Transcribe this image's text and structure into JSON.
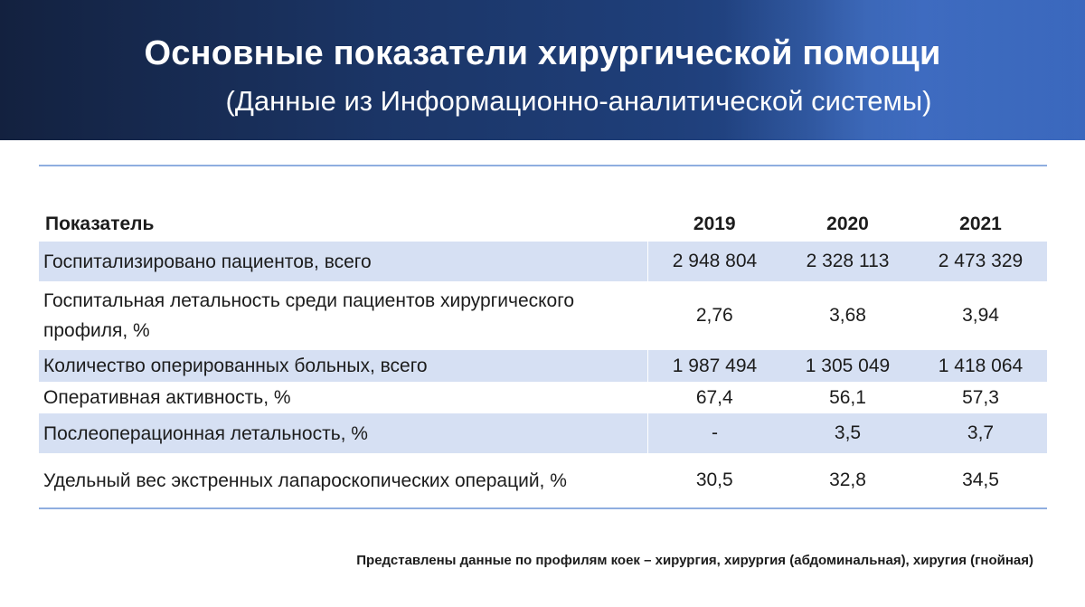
{
  "header": {
    "title": "Основные показатели хирургической помощи",
    "subtitle": "(Данные из Информационно-аналитической системы)"
  },
  "table": {
    "columns": [
      "Показатель",
      "2019",
      "2020",
      "2021"
    ],
    "rows": [
      {
        "label": "Госпитализировано пациентов, всего",
        "values": [
          "2 948 804",
          "2 328 113",
          "2 473 329"
        ]
      },
      {
        "label": "Госпитальная летальность среди пациентов хирургического профиля, %",
        "values": [
          "2,76",
          "3,68",
          "3,94"
        ]
      },
      {
        "label": "Количество оперированных больных, всего",
        "values": [
          "1 987 494",
          "1 305 049",
          "1 418 064"
        ]
      },
      {
        "label": "Оперативная активность, %",
        "values": [
          "67,4",
          "56,1",
          "57,3"
        ]
      },
      {
        "label": "Послеоперационная летальность, %",
        "values": [
          "-",
          "3,5",
          "3,7"
        ]
      },
      {
        "label": "Удельный вес экстренных лапароскопических операций, %",
        "values": [
          "30,5",
          "32,8",
          "34,5"
        ]
      }
    ]
  },
  "footnote": "Представлены данные по профилям коек – хирургия, хирургия (абдоминальная), хиругия (гнойная)"
}
